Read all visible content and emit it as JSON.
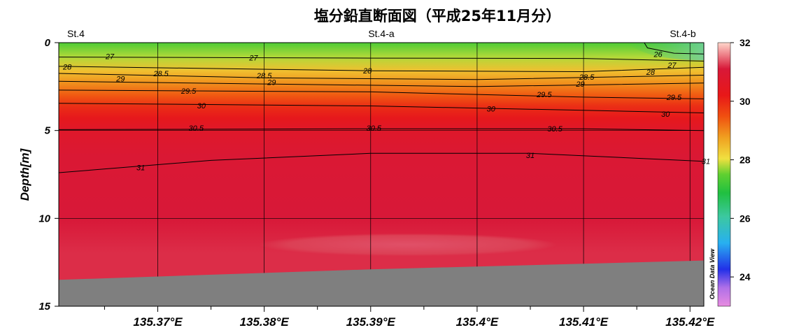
{
  "chart_data": {
    "type": "heatmap",
    "title": "塩分鉛直断面図（平成25年11月分）",
    "ylabel": "Depth[m]",
    "xlabel": "",
    "stations": [
      "St.4",
      "St.4-a",
      "St.4-b"
    ],
    "xlim": [
      135.3607,
      135.4213
    ],
    "ylim": [
      15,
      0
    ],
    "x_ticks": [
      135.37,
      135.38,
      135.39,
      135.4,
      135.41,
      135.42
    ],
    "x_tick_labels": [
      "135.37°E",
      "135.38°E",
      "135.39°E",
      "135.4°E",
      "135.41°E",
      "135.42°E"
    ],
    "y_ticks": [
      0,
      5,
      10,
      15
    ],
    "y_tick_labels": [
      "0",
      "5",
      "10",
      "15"
    ],
    "colorbar": {
      "range": [
        23,
        32
      ],
      "ticks": [
        24,
        26,
        28,
        30,
        32
      ],
      "tick_labels": [
        "24",
        "26",
        "28",
        "30",
        "32"
      ]
    },
    "credit": "Ocean Data View",
    "grid": true,
    "seabed_depth": [
      [
        135.3607,
        13.5
      ],
      [
        135.39,
        12.9
      ],
      [
        135.4213,
        12.4
      ]
    ],
    "salinity_profile_depth": [
      0,
      0.8,
      1.6,
      2.3,
      3.0,
      3.6,
      4.3,
      5.0,
      6.5,
      10.0,
      12.0
    ],
    "salinity_profile_value": [
      27.3,
      27.8,
      28.4,
      28.9,
      29.4,
      29.9,
      30.3,
      30.7,
      31.0,
      31.1,
      31.2
    ],
    "contours": [
      {
        "value": 26,
        "label": "26",
        "points": [
          [
            135.4157,
            0
          ],
          [
            135.416,
            0.3
          ],
          [
            135.4185,
            0.6
          ],
          [
            135.4213,
            0.65
          ]
        ]
      },
      {
        "value": 27,
        "label": "27",
        "points": [
          [
            135.3607,
            0.82
          ],
          [
            135.39,
            0.88
          ],
          [
            135.41,
            0.9
          ],
          [
            135.4213,
            1.05
          ]
        ]
      },
      {
        "value": 28,
        "label": "28",
        "points": [
          [
            135.3607,
            1.35
          ],
          [
            135.39,
            1.6
          ],
          [
            135.41,
            1.65
          ],
          [
            135.4213,
            1.4
          ]
        ]
      },
      {
        "value": 28.5,
        "label": "28.5",
        "points": [
          [
            135.3607,
            1.75
          ],
          [
            135.38,
            2.0
          ],
          [
            135.4,
            2.1
          ],
          [
            135.4213,
            1.85
          ]
        ]
      },
      {
        "value": 29,
        "label": "29",
        "points": [
          [
            135.3607,
            2.2
          ],
          [
            135.38,
            2.35
          ],
          [
            135.4,
            2.5
          ],
          [
            135.4213,
            2.3
          ]
        ]
      },
      {
        "value": 29.5,
        "label": "29.5",
        "points": [
          [
            135.3607,
            2.7
          ],
          [
            135.39,
            2.8
          ],
          [
            135.41,
            3.1
          ],
          [
            135.4213,
            3.2
          ]
        ]
      },
      {
        "value": 30,
        "label": "30",
        "points": [
          [
            135.3607,
            3.45
          ],
          [
            135.39,
            3.6
          ],
          [
            135.41,
            3.85
          ],
          [
            135.4213,
            4.0
          ]
        ]
      },
      {
        "value": 30.5,
        "label": "30.5",
        "points": [
          [
            135.3607,
            4.95
          ],
          [
            135.39,
            4.9
          ],
          [
            135.41,
            4.9
          ],
          [
            135.4213,
            5.0
          ]
        ]
      },
      {
        "value": 31,
        "label": "31",
        "points": [
          [
            135.3607,
            7.4
          ],
          [
            135.375,
            6.7
          ],
          [
            135.39,
            6.3
          ],
          [
            135.405,
            6.3
          ],
          [
            135.4213,
            6.75
          ]
        ]
      }
    ],
    "contour_labels": [
      {
        "text": "26",
        "x": 135.417,
        "y": 0.65
      },
      {
        "text": "27",
        "x": 135.3655,
        "y": 0.78
      },
      {
        "text": "27",
        "x": 135.379,
        "y": 0.85
      },
      {
        "text": "27",
        "x": 135.4183,
        "y": 1.28
      },
      {
        "text": "28",
        "x": 135.3615,
        "y": 1.38
      },
      {
        "text": "28",
        "x": 135.3897,
        "y": 1.6
      },
      {
        "text": "28",
        "x": 135.4163,
        "y": 1.68
      },
      {
        "text": "28.5",
        "x": 135.3703,
        "y": 1.75
      },
      {
        "text": "28.5",
        "x": 135.38,
        "y": 1.87
      },
      {
        "text": "28.5",
        "x": 135.4103,
        "y": 1.95
      },
      {
        "text": "29",
        "x": 135.3665,
        "y": 2.05
      },
      {
        "text": "29",
        "x": 135.3807,
        "y": 2.25
      },
      {
        "text": "29",
        "x": 135.4097,
        "y": 2.35
      },
      {
        "text": "29.5",
        "x": 135.3729,
        "y": 2.75
      },
      {
        "text": "29.5",
        "x": 135.4063,
        "y": 2.95
      },
      {
        "text": "29.5",
        "x": 135.4185,
        "y": 3.1
      },
      {
        "text": "30",
        "x": 135.3741,
        "y": 3.58
      },
      {
        "text": "30",
        "x": 135.4013,
        "y": 3.75
      },
      {
        "text": "30",
        "x": 135.4177,
        "y": 4.05
      },
      {
        "text": "30.5",
        "x": 135.3736,
        "y": 4.85
      },
      {
        "text": "30.5",
        "x": 135.3903,
        "y": 4.85
      },
      {
        "text": "30.5",
        "x": 135.4073,
        "y": 4.9
      },
      {
        "text": "31",
        "x": 135.3684,
        "y": 7.1
      },
      {
        "text": "31",
        "x": 135.405,
        "y": 6.4
      },
      {
        "text": "31",
        "x": 135.4215,
        "y": 6.75
      }
    ]
  }
}
